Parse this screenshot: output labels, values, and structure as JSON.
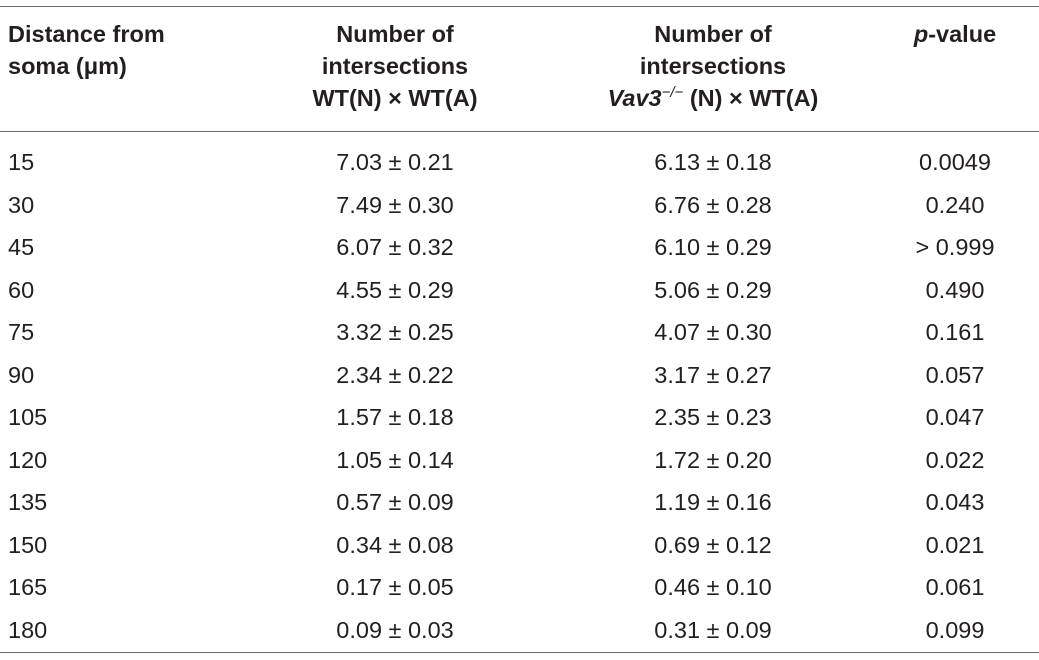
{
  "table": {
    "headers": {
      "distance": [
        "Distance from",
        "soma (μm)"
      ],
      "wt": [
        "Number of",
        "intersections",
        "WT(N) × WT(A)"
      ],
      "vav3": {
        "line1": "Number of",
        "line2": "intersections",
        "gene": "Vav3",
        "sup": "−/−",
        "rest": " (N) × WT(A)"
      },
      "pvalue": {
        "p": "p",
        "rest": "-value"
      }
    },
    "rows": [
      {
        "distance": "15",
        "wt": "7.03 ± 0.21",
        "vav3": "6.13 ± 0.18",
        "p": "0.0049"
      },
      {
        "distance": "30",
        "wt": "7.49 ± 0.30",
        "vav3": "6.76 ± 0.28",
        "p": "0.240"
      },
      {
        "distance": "45",
        "wt": "6.07 ± 0.32",
        "vav3": "6.10 ± 0.29",
        "p": ">  0.999"
      },
      {
        "distance": "60",
        "wt": "4.55 ± 0.29",
        "vav3": "5.06 ± 0.29",
        "p": "0.490"
      },
      {
        "distance": "75",
        "wt": "3.32 ± 0.25",
        "vav3": "4.07 ± 0.30",
        "p": "0.161"
      },
      {
        "distance": "90",
        "wt": "2.34 ± 0.22",
        "vav3": "3.17 ± 0.27",
        "p": "0.057"
      },
      {
        "distance": "105",
        "wt": "1.57 ± 0.18",
        "vav3": "2.35 ± 0.23",
        "p": "0.047"
      },
      {
        "distance": "120",
        "wt": "1.05 ± 0.14",
        "vav3": "1.72 ± 0.20",
        "p": "0.022"
      },
      {
        "distance": "135",
        "wt": "0.57 ± 0.09",
        "vav3": "1.19 ± 0.16",
        "p": "0.043"
      },
      {
        "distance": "150",
        "wt": "0.34 ± 0.08",
        "vav3": "0.69 ± 0.12",
        "p": "0.021"
      },
      {
        "distance": "165",
        "wt": "0.17 ± 0.05",
        "vav3": "0.46 ± 0.10",
        "p": "0.061"
      },
      {
        "distance": "180",
        "wt": "0.09 ± 0.03",
        "vav3": "0.31 ± 0.09",
        "p": "0.099"
      }
    ]
  }
}
